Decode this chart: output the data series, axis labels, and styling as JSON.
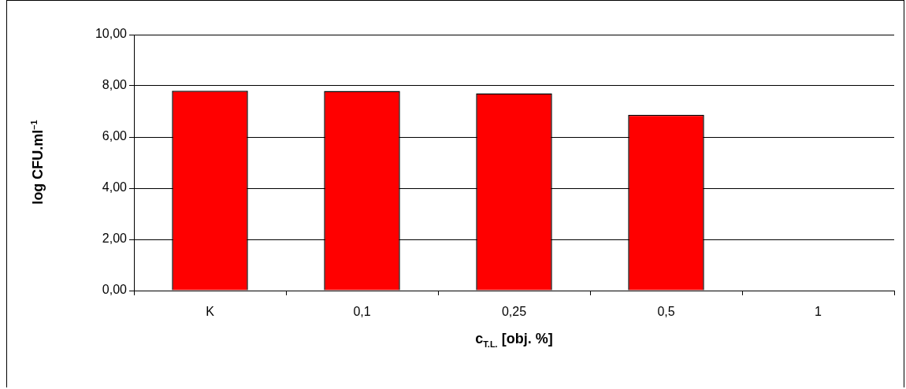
{
  "chart_data": {
    "type": "bar",
    "xlabel": "c$_{T.L.}$ [obj. %]",
    "ylabel": "log CFU.ml$^{–1}$",
    "categories": [
      "K",
      "0,1",
      "0,25",
      "0,5",
      "1"
    ],
    "values": [
      7.81,
      7.8,
      7.71,
      6.87,
      0
    ],
    "color": "#ff0000",
    "ylim": [
      0,
      10
    ],
    "yticks": [
      {
        "value": 0,
        "label": "0,00"
      },
      {
        "value": 2,
        "label": "2,00"
      },
      {
        "value": 4,
        "label": "4,00"
      },
      {
        "value": 6,
        "label": "6,00"
      },
      {
        "value": 8,
        "label": "8,00"
      },
      {
        "value": 10,
        "label": "10,00"
      }
    ],
    "grid": "y",
    "legend": false
  }
}
